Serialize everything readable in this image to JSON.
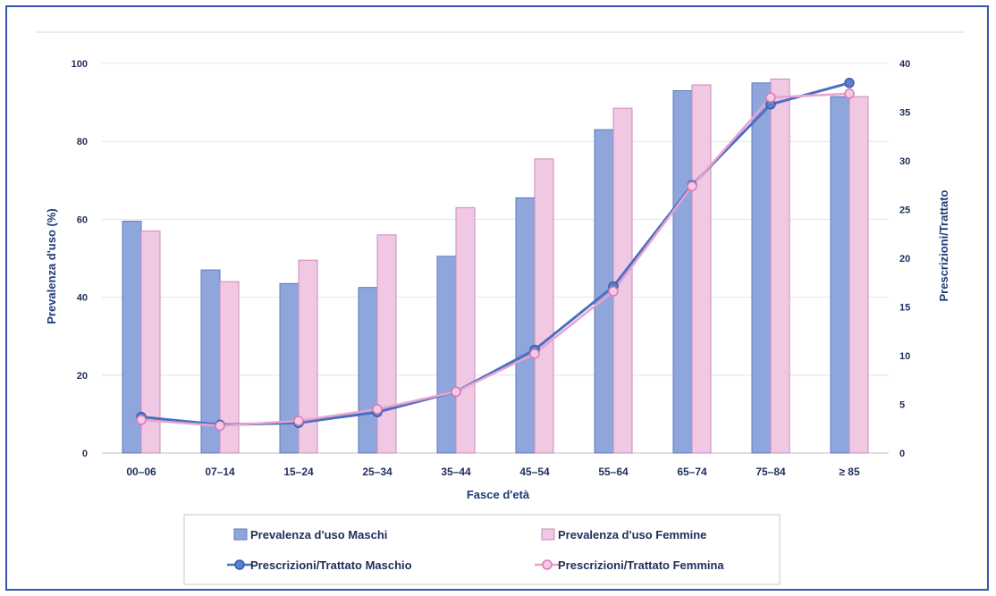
{
  "chart_data": {
    "type": "bar",
    "categories": [
      "00–06",
      "07–14",
      "15–24",
      "25–34",
      "35–44",
      "45–54",
      "55–64",
      "65–74",
      "75–84",
      "≥ 85"
    ],
    "xlabel": "Fasce d'età",
    "ylabel": "Prevalenza d'uso (%)",
    "y2label": "Prescrizioni/Trattato",
    "ylim": [
      0,
      100
    ],
    "y2lim": [
      0,
      40
    ],
    "yticks": [
      0,
      20,
      40,
      60,
      80,
      100
    ],
    "y2ticks": [
      0,
      5,
      10,
      15,
      20,
      25,
      30,
      35,
      40
    ],
    "grid": true,
    "legend_position": "bottom",
    "series": [
      {
        "name": "Prevalenza d'uso Maschi",
        "kind": "bar",
        "axis": "left",
        "color": "#8fa6dc",
        "values": [
          59.5,
          47,
          43.5,
          42.5,
          50.5,
          65.5,
          83,
          93,
          95,
          91.5
        ]
      },
      {
        "name": "Prevalenza d'uso Femmine",
        "kind": "bar",
        "axis": "left",
        "color": "#f0c8e4",
        "values": [
          57,
          44,
          49.5,
          56,
          63,
          75.5,
          88.5,
          94.5,
          96,
          91.5
        ]
      },
      {
        "name": "Prescrizioni/Trattato Maschio",
        "kind": "line",
        "axis": "right",
        "color": "#4a70c0",
        "values": [
          3.7,
          2.9,
          3.1,
          4.2,
          6.3,
          10.6,
          17.1,
          27.5,
          35.8,
          38.0
        ]
      },
      {
        "name": "Prescrizioni/Trattato Femmina",
        "kind": "line",
        "axis": "right",
        "color": "#e9a2cf",
        "values": [
          3.4,
          2.8,
          3.3,
          4.5,
          6.3,
          10.2,
          16.6,
          27.4,
          36.5,
          36.9
        ]
      }
    ]
  }
}
